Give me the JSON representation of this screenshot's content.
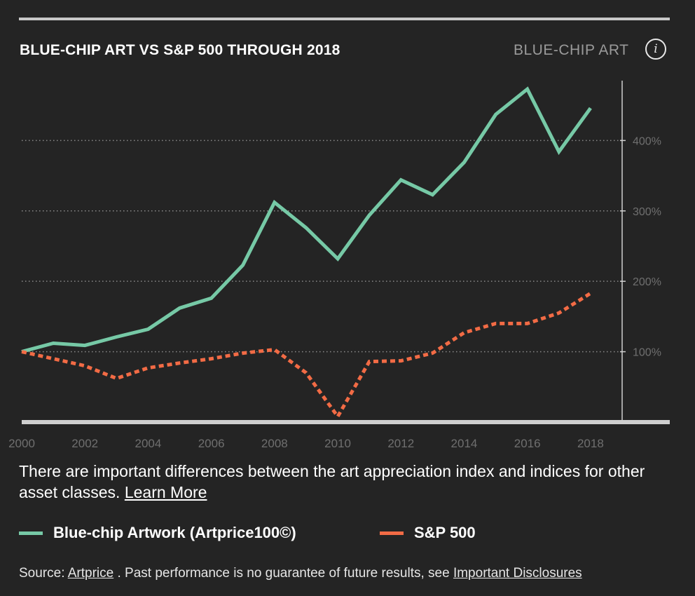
{
  "header": {
    "title": "BLUE-CHIP ART VS S&P 500 THROUGH 2018",
    "tag": "BLUE-CHIP ART",
    "info_icon": "i"
  },
  "disclaimer": {
    "text": "There are important differences between the art appreciation index and indices for other asset classes.",
    "link_label": "Learn More"
  },
  "legend": {
    "items": [
      {
        "label": "Blue-chip Artwork (Artprice100©)",
        "color": "#76c9a6"
      },
      {
        "label": "S&P 500",
        "color": "#f26b45"
      }
    ]
  },
  "source": {
    "prefix": "Source:",
    "link_label": "Artprice",
    "text": ". Past performance is no guarantee of future results, see",
    "disclosures_label": "Important Disclosures"
  },
  "colors": {
    "background": "#242424",
    "art_line": "#76c9a6",
    "sp_line": "#f26b45",
    "grid": "#8a8a8a",
    "tick_text": "#6f6f6f",
    "axis": "#cfcfcf"
  },
  "chart_data": {
    "type": "line",
    "title": "BLUE-CHIP ART VS S&P 500 THROUGH 2018",
    "xlabel": "",
    "ylabel": "",
    "x": [
      2000,
      2001,
      2002,
      2003,
      2004,
      2005,
      2006,
      2007,
      2008,
      2009,
      2010,
      2011,
      2012,
      2013,
      2014,
      2015,
      2016,
      2017,
      2018
    ],
    "xlim": [
      2000,
      2019
    ],
    "ylim": [
      0,
      490
    ],
    "x_ticks": [
      "2000",
      "2002",
      "2004",
      "2006",
      "2008",
      "2010",
      "2012",
      "2014",
      "2016",
      "2018"
    ],
    "y_ticks": [
      {
        "value": 100,
        "label": "100%"
      },
      {
        "value": 200,
        "label": "200%"
      },
      {
        "value": 300,
        "label": "300%"
      },
      {
        "value": 400,
        "label": "400%"
      }
    ],
    "grid": true,
    "y_axis_position": "right",
    "series": [
      {
        "name": "Blue-chip Artwork (Artprice100©)",
        "style": "solid",
        "values": [
          100,
          112,
          109,
          121,
          132,
          162,
          176,
          223,
          312,
          276,
          232,
          294,
          344,
          323,
          369,
          437,
          473,
          384,
          446
        ]
      },
      {
        "name": "S&P 500",
        "style": "dotted",
        "values": [
          100,
          90,
          80,
          62,
          77,
          84,
          90,
          98,
          103,
          70,
          8,
          86,
          87,
          98,
          127,
          140,
          140,
          155,
          183
        ]
      }
    ]
  }
}
